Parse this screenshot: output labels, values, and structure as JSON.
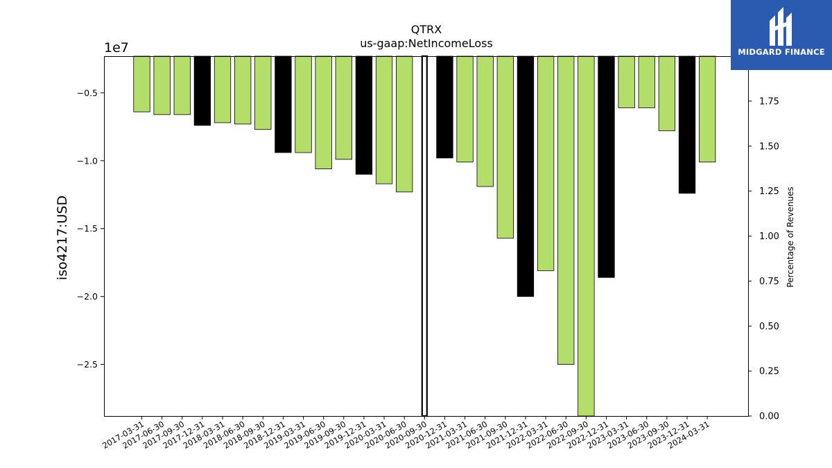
{
  "chart_data": {
    "type": "bar",
    "title": "QTRX",
    "subtitle": "us-gaap:NetIncomeLoss",
    "ylabel": "iso4217:USD",
    "ylabel_right": "Percentage of Revenues",
    "y_offset_text": "1e7",
    "ylim": [
      -28800000,
      -2300000
    ],
    "ylim_right": [
      0,
      2.0
    ],
    "yticks": [
      -5000000,
      -10000000,
      -15000000,
      -20000000,
      -25000000
    ],
    "ytick_labels": [
      "−0.5",
      "−1.0",
      "−1.5",
      "−2.0",
      "−2.5"
    ],
    "yticks_right": [
      0,
      0.25,
      0.5,
      0.75,
      1.0,
      1.25,
      1.5,
      1.75
    ],
    "ytick_labels_right": [
      "0.00",
      "0.25",
      "0.50",
      "0.75",
      "1.00",
      "1.25",
      "1.50",
      "1.75"
    ],
    "grid": false,
    "colors": {
      "quarter": "#b3de69",
      "annual": "#000000"
    },
    "categories": [
      "2017-03-31",
      "2017-06-30",
      "2017-09-30",
      "2017-12-31",
      "2018-03-31",
      "2018-06-30",
      "2018-09-30",
      "2018-12-31",
      "2019-03-31",
      "2019-06-30",
      "2019-09-30",
      "2019-12-31",
      "2020-03-31",
      "2020-06-30",
      "2020-09-30",
      "2020-12-31",
      "2021-03-31",
      "2021-06-30",
      "2021-09-30",
      "2021-12-31",
      "2022-03-31",
      "2022-06-30",
      "2022-09-30",
      "2022-12-31",
      "2023-03-31",
      "2023-06-30",
      "2023-09-30",
      "2023-12-31",
      "2024-03-31"
    ],
    "values": [
      -6400000,
      -6600000,
      -6600000,
      -7400000,
      -7200000,
      -7300000,
      -7700000,
      -9400000,
      -9400000,
      -10600000,
      -9900000,
      -11000000,
      -11700000,
      -12300000,
      -28800000,
      -9800000,
      -10100000,
      -11900000,
      -15700000,
      -20000000,
      -18100000,
      -25000000,
      -28800000,
      -18600000,
      -6100000,
      -6100000,
      -7800000,
      -12400000,
      -10100000
    ],
    "kinds": [
      "q",
      "q",
      "q",
      "a",
      "q",
      "q",
      "q",
      "a",
      "q",
      "q",
      "q",
      "a",
      "q",
      "q",
      "a",
      "a",
      "q",
      "q",
      "q",
      "a",
      "q",
      "q",
      "q",
      "a",
      "q",
      "q",
      "q",
      "a",
      "q"
    ]
  },
  "brand": {
    "name": "MIDGARD FINANCE",
    "color": "#2b5bb0"
  }
}
